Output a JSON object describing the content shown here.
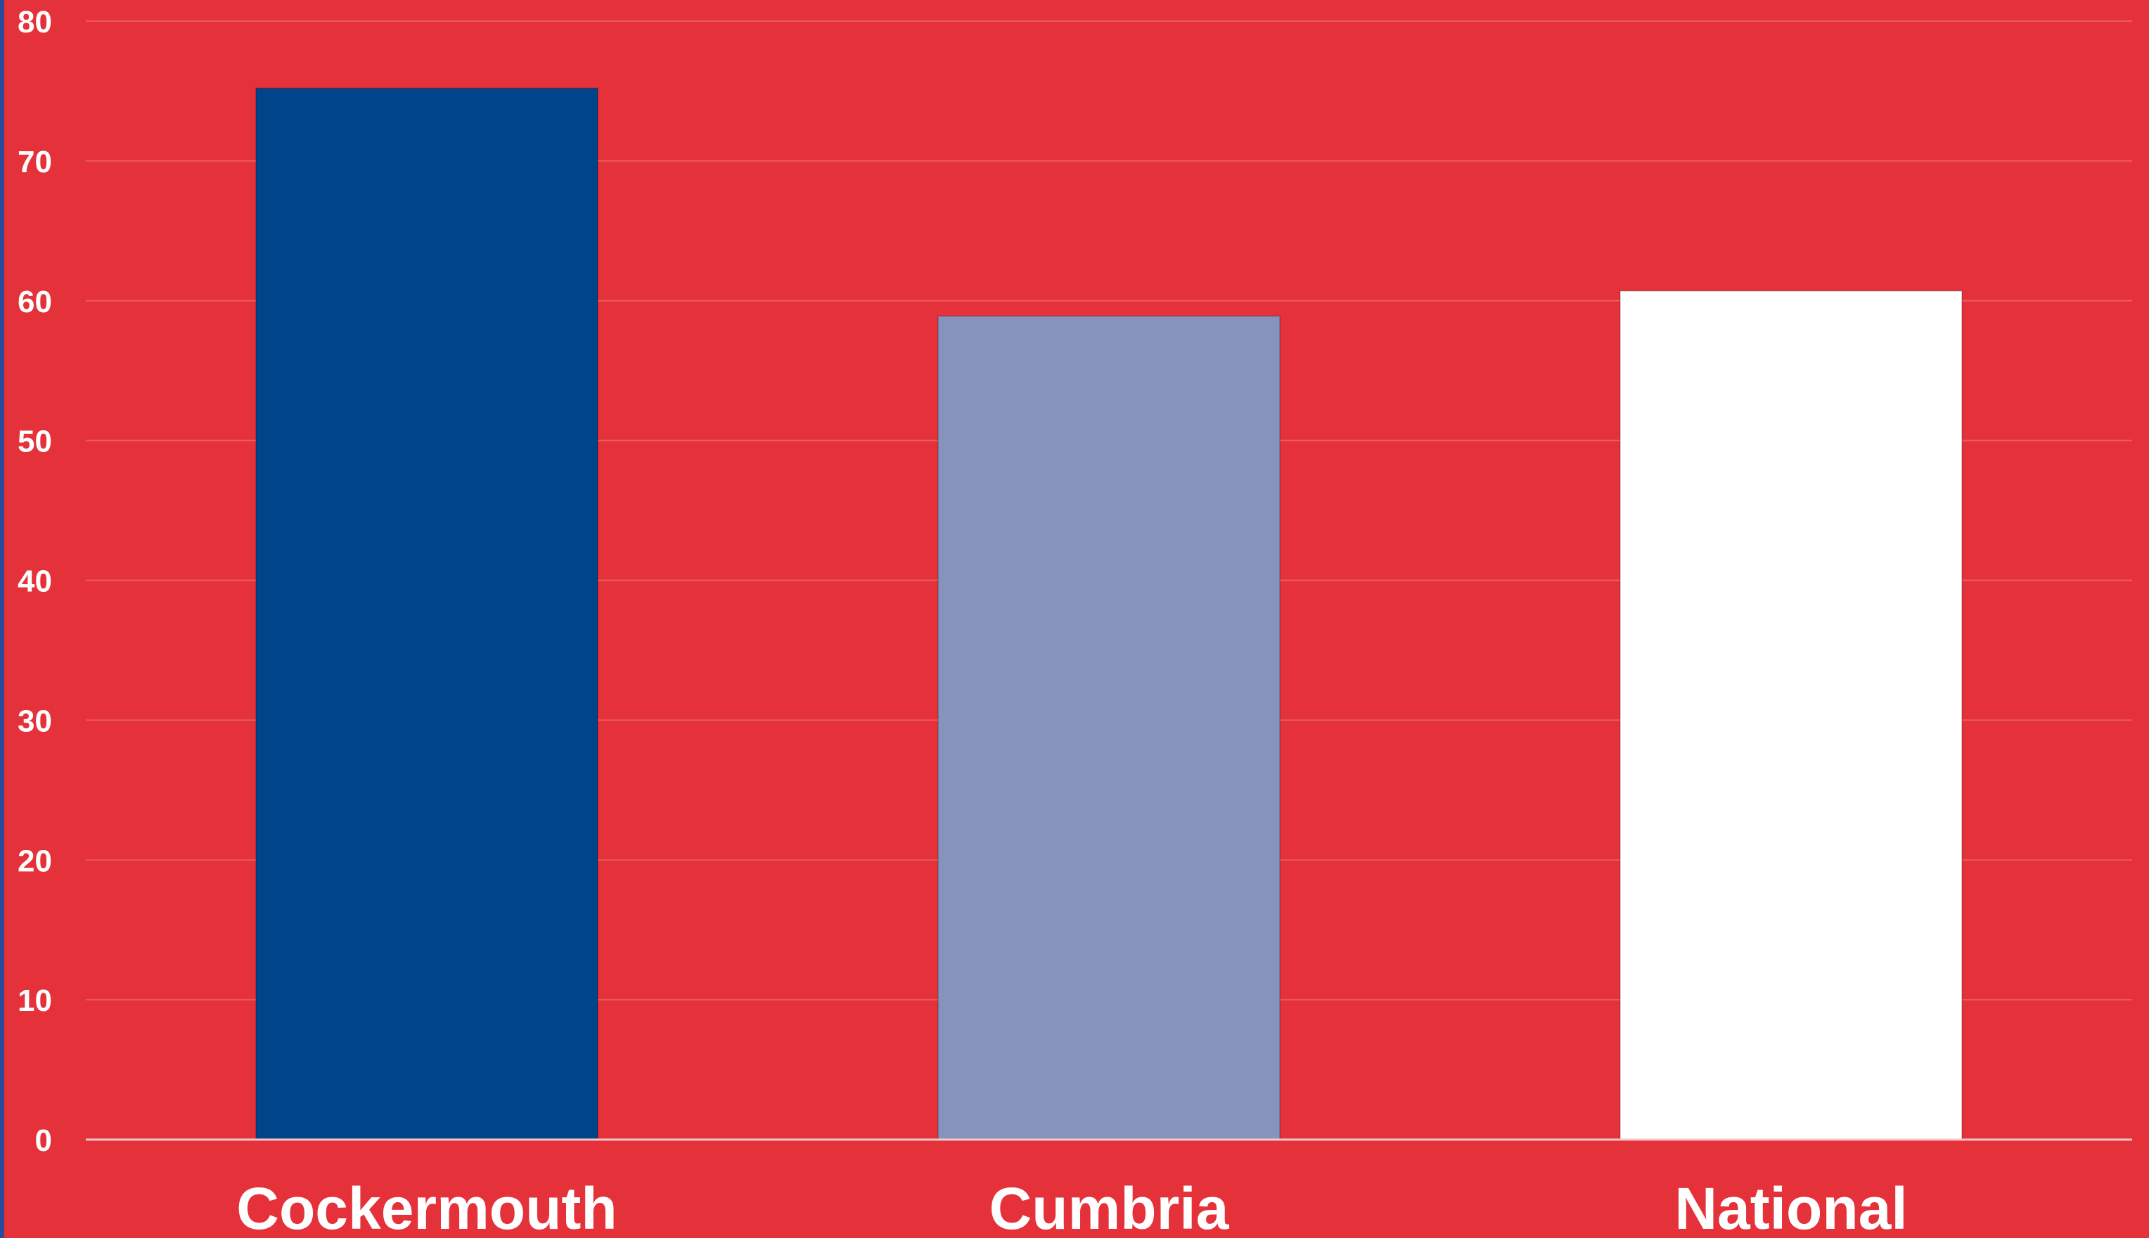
{
  "chart_data": {
    "type": "bar",
    "categories": [
      "Cockermouth",
      "Cumbria",
      "National"
    ],
    "values": [
      75.2,
      58.9,
      60.7
    ],
    "bar_colors": [
      "#00448a",
      "#8594bd",
      "#ffffff"
    ],
    "ylim": [
      0,
      80
    ],
    "yticks": [
      "0",
      "10",
      "20",
      "30",
      "40",
      "50",
      "60",
      "70",
      "80"
    ],
    "grid": true,
    "legend": "none"
  },
  "colors": {
    "background": "#e5313a",
    "gridline": "#ec5a5f",
    "axis_line": "#f3c9cb",
    "text": "#ffffff"
  }
}
